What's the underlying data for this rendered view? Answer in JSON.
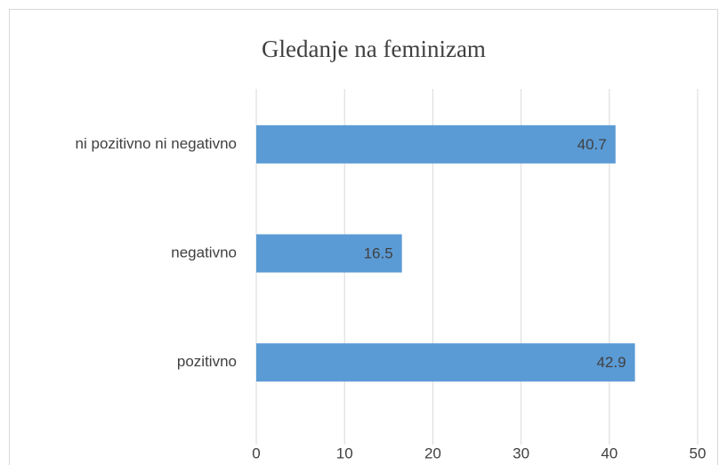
{
  "chart_data": {
    "type": "bar",
    "orientation": "horizontal",
    "title": "Gledanje na feminizam",
    "categories": [
      "ni pozitivno ni negativno",
      "negativno",
      "pozitivno"
    ],
    "values": [
      40.7,
      16.5,
      42.9
    ],
    "color": "#5b9bd5",
    "xlim": [
      0,
      50
    ],
    "xticks": [
      0,
      10,
      20,
      30,
      40,
      50
    ],
    "grid": true
  }
}
